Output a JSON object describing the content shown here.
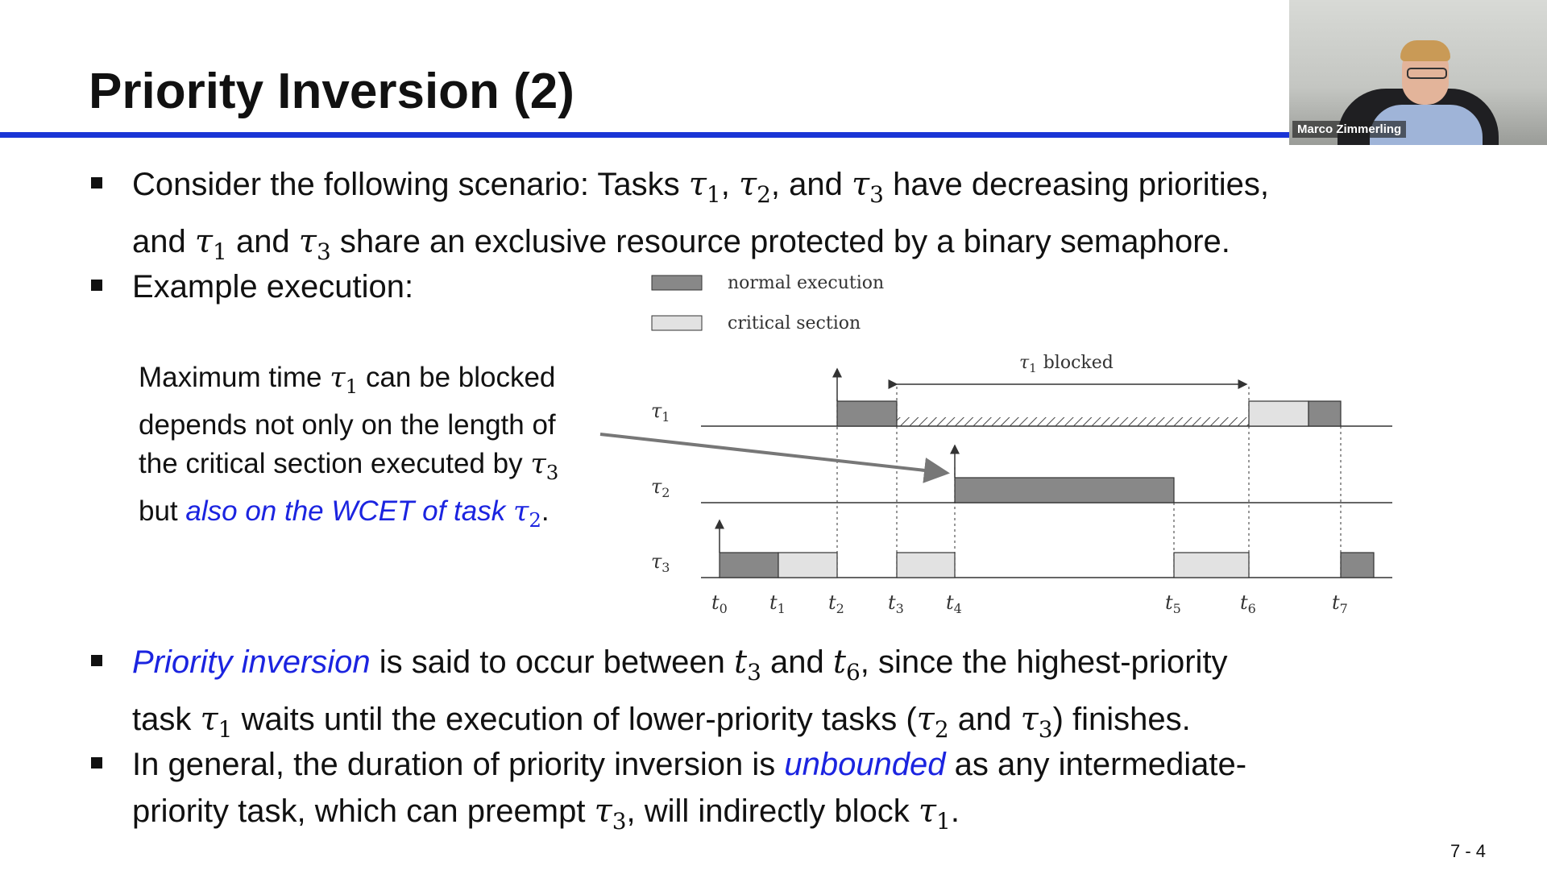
{
  "slide": {
    "title": "Priority Inversion (2)",
    "page_number": "7 - 4",
    "presenter_name": "Marco Zimmerling"
  },
  "bullets": {
    "b1_part1": "Consider the following scenario: Tasks ",
    "b1_tau1": "τ",
    "b1_sep1": ", ",
    "b1_sep2": ", and ",
    "b1_part2": " have decreasing priorities,",
    "b1_line2_a": "and ",
    "b1_line2_b": " and ",
    "b1_line2_c": " share an exclusive resource protected by a binary semaphore.",
    "b2": "Example execution:",
    "b3_highlight": "Priority inversion",
    "b3_a": " is said to occur between ",
    "b3_b": " and ",
    "b3_c": ", since the highest-priority",
    "b3_line2_a": "task ",
    "b3_line2_b": " waits until the execution of lower-priority tasks (",
    "b3_line2_c": " and ",
    "b3_line2_d": ") finishes.",
    "b4_a": "In general, the duration of priority inversion is ",
    "b4_highlight": "unbounded",
    "b4_b": " as any intermediate-",
    "b4_line2_a": "priority task, which can preempt ",
    "b4_line2_b": ", will indirectly block ",
    "b4_line2_c": "."
  },
  "note": {
    "line1_a": "Maximum time ",
    "line1_b": " can be blocked",
    "line2": "depends not only on the length of",
    "line3": "the critical section executed by ",
    "line4_a": "but ",
    "line4_highlight": "also on the WCET of task ",
    "line4_b": "."
  },
  "math": {
    "tau": "τ",
    "t": "t",
    "s1": "1",
    "s2": "2",
    "s3": "3",
    "s6": "6"
  },
  "diagram": {
    "legend": [
      {
        "label": "normal execution",
        "color": "#888888"
      },
      {
        "label": "critical section",
        "color": "#e2e2e2"
      }
    ],
    "blocked_label": "blocked",
    "tasks": [
      "1",
      "2",
      "3"
    ],
    "time_labels": [
      "0",
      "1",
      "2",
      "3",
      "4",
      "5",
      "6",
      "7"
    ]
  },
  "colors": {
    "accent_blue": "#1a35d6",
    "highlight_blue": "#1b24e0",
    "normal_execution": "#888888",
    "critical_section": "#e2e2e2"
  }
}
